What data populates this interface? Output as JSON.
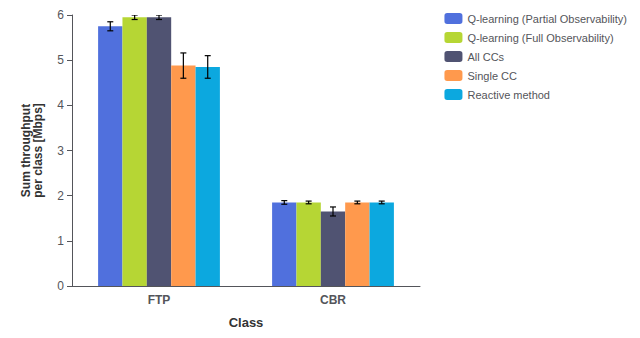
{
  "chart_data": {
    "type": "bar",
    "title": "",
    "xlabel": "Class",
    "ylabel": "Sum throughput\nper class [Mbps]",
    "categories": [
      "FTP",
      "CBR"
    ],
    "series": [
      {
        "name": "Q-learning (Partial Observability)",
        "values": [
          5.75,
          1.85
        ],
        "errors": [
          0.1,
          0.04
        ]
      },
      {
        "name": "Q-learning (Full Observability)",
        "values": [
          5.95,
          1.85
        ],
        "errors": [
          0.05,
          0.03
        ]
      },
      {
        "name": "All CCs",
        "values": [
          5.95,
          1.65
        ],
        "errors": [
          0.05,
          0.1
        ]
      },
      {
        "name": "Single CC",
        "values": [
          4.88,
          1.85
        ],
        "errors": [
          0.28,
          0.03
        ]
      },
      {
        "name": "Reactive method",
        "values": [
          4.85,
          1.85
        ],
        "errors": [
          0.25,
          0.03
        ]
      }
    ],
    "ylim": [
      0,
      6
    ],
    "yticks": [
      0,
      1,
      2,
      3,
      4,
      5,
      6
    ],
    "grid": false,
    "legend": "upper right"
  }
}
